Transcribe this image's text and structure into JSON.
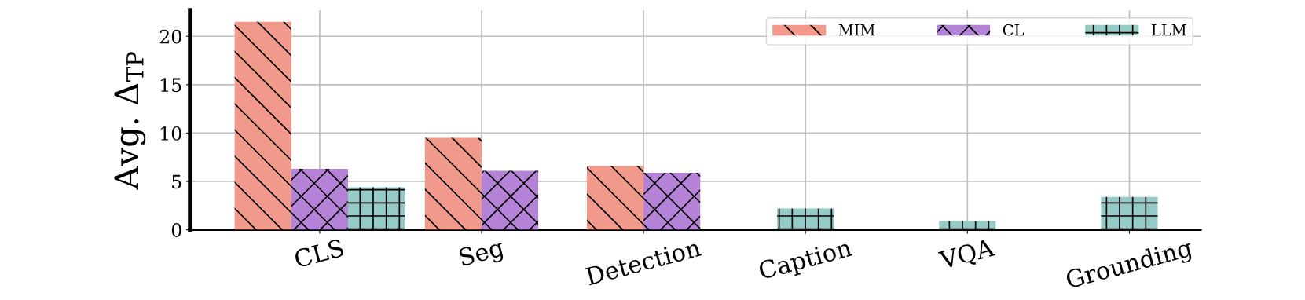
{
  "chart_data": {
    "type": "bar",
    "ylabel": "Avg. Δ$_{TP}$",
    "categories": [
      "CLS",
      "Seg",
      "Detection",
      "Caption",
      "VQA",
      "Grounding"
    ],
    "series": [
      {
        "name": "MIM",
        "color": "#f1998a",
        "values": [
          21.5,
          9.5,
          6.6,
          null,
          null,
          null
        ]
      },
      {
        "name": "CL",
        "color": "#b482d6",
        "values": [
          6.3,
          6.1,
          5.9,
          null,
          null,
          null
        ]
      },
      {
        "name": "LLM",
        "color": "#94cbc6",
        "values": [
          4.4,
          null,
          null,
          2.2,
          0.9,
          3.4
        ]
      }
    ],
    "ylim": [
      0,
      22.7
    ],
    "yticks": [
      0,
      5,
      10,
      15,
      20
    ],
    "grid": true,
    "legend": "top right"
  }
}
